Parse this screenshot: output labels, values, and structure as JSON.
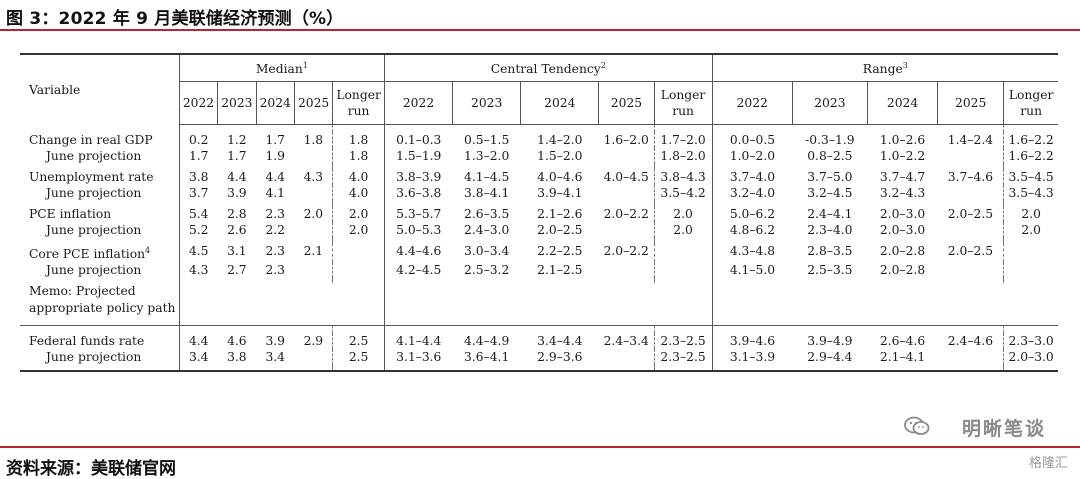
{
  "title": "图 3：2022 年 9 月美联储经济预测（%）",
  "footer": "资料来源：美联储官网",
  "watermark": "明晰笔谈",
  "watermark2": "格隆汇",
  "header": {
    "variable": "Variable",
    "median": "Median",
    "median_sup": "1",
    "central": "Central Tendency",
    "central_sup": "2",
    "range": "Range",
    "range_sup": "3",
    "years": [
      "2022",
      "2023",
      "2024",
      "2025"
    ],
    "longer1": "Longer",
    "longer2": "run"
  },
  "rows": [
    {
      "label": "Change in real GDP",
      "m": [
        "0.2",
        "1.2",
        "1.7",
        "1.8",
        "1.8"
      ],
      "ct": [
        "0.1–0.3",
        "0.5–1.5",
        "1.4–2.0",
        "1.6–2.0",
        "1.7–2.0"
      ],
      "r": [
        "0.0–0.5",
        "-0.3–1.9",
        "1.0–2.6",
        "1.4–2.4",
        "1.6–2.2"
      ]
    },
    {
      "label": "June projection",
      "m": [
        "1.7",
        "1.7",
        "1.9",
        "",
        "1.8"
      ],
      "ct": [
        "1.5–1.9",
        "1.3–2.0",
        "1.5–2.0",
        "",
        "1.8–2.0"
      ],
      "r": [
        "1.0–2.0",
        "0.8–2.5",
        "1.0–2.2",
        "",
        "1.6–2.2"
      ]
    },
    {
      "label": "Unemployment rate",
      "m": [
        "3.8",
        "4.4",
        "4.4",
        "4.3",
        "4.0"
      ],
      "ct": [
        "3.8–3.9",
        "4.1–4.5",
        "4.0–4.6",
        "4.0–4.5",
        "3.8–4.3"
      ],
      "r": [
        "3.7–4.0",
        "3.7–5.0",
        "3.7–4.7",
        "3.7–4.6",
        "3.5–4.5"
      ]
    },
    {
      "label": "June projection",
      "m": [
        "3.7",
        "3.9",
        "4.1",
        "",
        "4.0"
      ],
      "ct": [
        "3.6–3.8",
        "3.8–4.1",
        "3.9–4.1",
        "",
        "3.5–4.2"
      ],
      "r": [
        "3.2–4.0",
        "3.2–4.5",
        "3.2–4.3",
        "",
        "3.5–4.3"
      ]
    },
    {
      "label": "PCE inflation",
      "m": [
        "5.4",
        "2.8",
        "2.3",
        "2.0",
        "2.0"
      ],
      "ct": [
        "5.3–5.7",
        "2.6–3.5",
        "2.1–2.6",
        "2.0–2.2",
        "2.0"
      ],
      "r": [
        "5.0–6.2",
        "2.4–4.1",
        "2.0–3.0",
        "2.0–2.5",
        "2.0"
      ]
    },
    {
      "label": "June projection",
      "m": [
        "5.2",
        "2.6",
        "2.2",
        "",
        "2.0"
      ],
      "ct": [
        "5.0–5.3",
        "2.4–3.0",
        "2.0–2.5",
        "",
        "2.0"
      ],
      "r": [
        "4.8–6.2",
        "2.3–4.0",
        "2.0–3.0",
        "",
        "2.0"
      ]
    },
    {
      "label": "Core PCE inflation",
      "sup": "4",
      "m": [
        "4.5",
        "3.1",
        "2.3",
        "2.1",
        ""
      ],
      "ct": [
        "4.4–4.6",
        "3.0–3.4",
        "2.2–2.5",
        "2.0–2.2",
        ""
      ],
      "r": [
        "4.3–4.8",
        "2.8–3.5",
        "2.0–2.8",
        "2.0–2.5",
        ""
      ]
    },
    {
      "label": "June projection",
      "m": [
        "4.3",
        "2.7",
        "2.3",
        "",
        ""
      ],
      "ct": [
        "4.2–4.5",
        "2.5–3.2",
        "2.1–2.5",
        "",
        ""
      ],
      "r": [
        "4.1–5.0",
        "2.5–3.5",
        "2.0–2.8",
        "",
        ""
      ]
    }
  ],
  "memo": [
    "Memo: Projected",
    "appropriate policy path"
  ],
  "ffr": [
    {
      "label": "Federal funds rate",
      "m": [
        "4.4",
        "4.6",
        "3.9",
        "2.9",
        "2.5"
      ],
      "ct": [
        "4.1–4.4",
        "4.4–4.9",
        "3.4–4.4",
        "2.4–3.4",
        "2.3–2.5"
      ],
      "r": [
        "3.9–4.6",
        "3.9–4.9",
        "2.6–4.6",
        "2.4–4.6",
        "2.3–3.0"
      ]
    },
    {
      "label": "June projection",
      "m": [
        "3.4",
        "3.8",
        "3.4",
        "",
        "2.5"
      ],
      "ct": [
        "3.1–3.6",
        "3.6–4.1",
        "2.9–3.6",
        "",
        "2.3–2.5"
      ],
      "r": [
        "3.1–3.9",
        "2.9–4.4",
        "2.1–4.1",
        "",
        "2.0–3.0"
      ]
    }
  ]
}
